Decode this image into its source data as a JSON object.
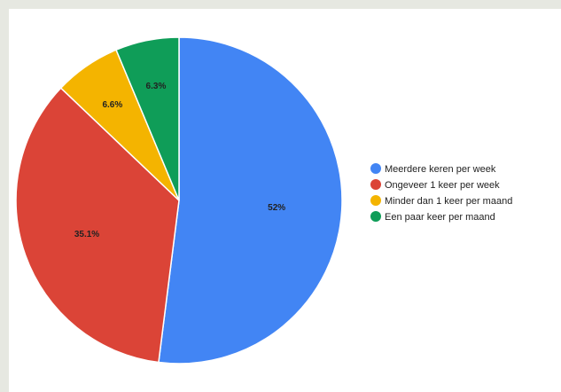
{
  "chart_data": {
    "type": "pie",
    "title": "",
    "slices": [
      {
        "label": "Meerdere keren per week",
        "value": 52,
        "display": "52%",
        "color": "#4285f4"
      },
      {
        "label": "Ongeveer 1 keer per week",
        "value": 35.1,
        "display": "35.1%",
        "color": "#db4437"
      },
      {
        "label": "Minder dan 1 keer per maand",
        "value": 6.6,
        "display": "6.6%",
        "color": "#f4b400"
      },
      {
        "label": "Een paar keer per maand",
        "value": 6.3,
        "display": "6.3%",
        "color": "#0f9d58"
      }
    ],
    "legend_position": "right"
  }
}
